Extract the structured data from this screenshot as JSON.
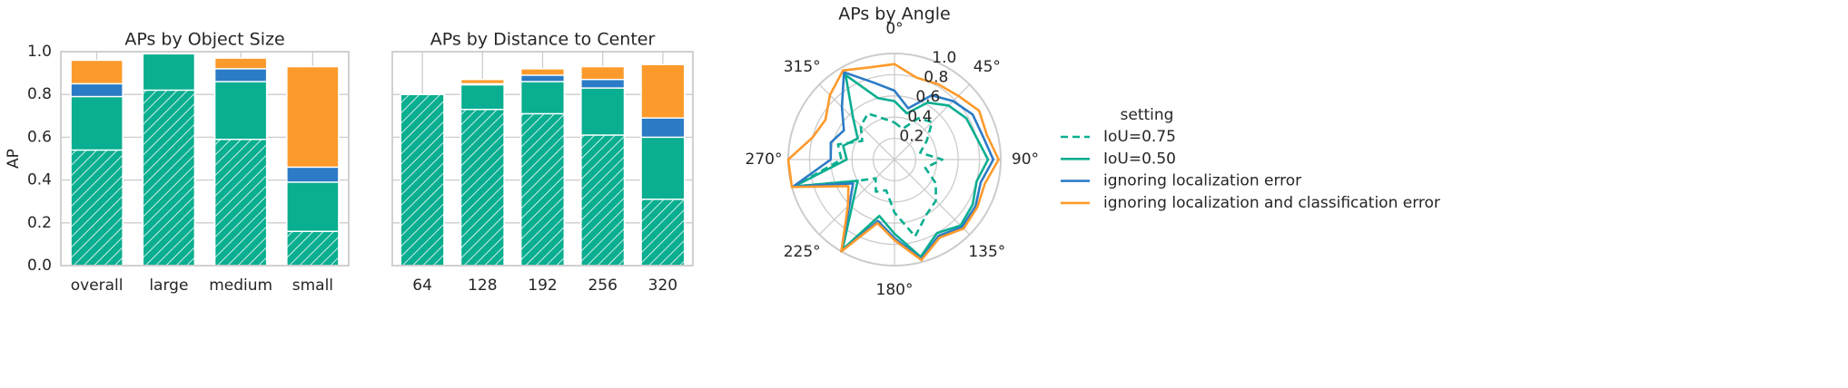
{
  "chart_data": [
    {
      "type": "bar",
      "title": "APs by Object Size",
      "ylabel": "AP",
      "categories": [
        "overall",
        "large",
        "medium",
        "small"
      ],
      "series": [
        {
          "color": "#0aae90",
          "hatch": true,
          "values": [
            0.54,
            0.82,
            0.59,
            0.16
          ]
        },
        {
          "color": "#0aae90",
          "values": [
            0.79,
            0.99,
            0.86,
            0.39
          ]
        },
        {
          "color": "#2b7bc6",
          "values": [
            0.85,
            0.99,
            0.92,
            0.46
          ]
        },
        {
          "color": "#fd9a2c",
          "values": [
            0.96,
            0.99,
            0.97,
            0.93
          ]
        }
      ],
      "ylim": [
        0,
        1
      ],
      "show_ytick_labels": true,
      "yticks": [
        {
          "value": 0,
          "label": "0.0"
        },
        0.2,
        0.4,
        0.6,
        0.8,
        {
          "value": 1,
          "label": "1.0"
        }
      ],
      "grid": true
    },
    {
      "type": "bar",
      "title": "APs by Distance to Center",
      "categories": [
        "64",
        "128",
        "192",
        "256",
        "320"
      ],
      "series": [
        {
          "color": "#0aae90",
          "hatch": true,
          "values": [
            0.8,
            0.73,
            0.71,
            0.61,
            0.31
          ]
        },
        {
          "color": "#0aae90",
          "values": [
            0.8,
            0.845,
            0.86,
            0.83,
            0.6
          ]
        },
        {
          "color": "#2b7bc6",
          "values": [
            0.8,
            0.85,
            0.89,
            0.87,
            0.69
          ]
        },
        {
          "color": "#fd9a2c",
          "values": [
            0.8,
            0.87,
            0.92,
            0.93,
            0.94
          ]
        }
      ],
      "ylim": [
        0,
        1
      ],
      "show_ytick_labels": false,
      "yticks": [
        0,
        0.2,
        0.4,
        0.6,
        0.8,
        1
      ],
      "grid": true
    },
    {
      "type": "polar",
      "title": "APs by Angle",
      "legend_title": "setting",
      "theta": [
        0,
        15,
        30,
        45,
        60,
        75,
        90,
        105,
        120,
        135,
        150,
        165,
        180,
        195,
        210,
        225,
        240,
        255,
        270,
        285,
        300,
        315,
        330,
        345
      ],
      "series": [
        {
          "name": "IoU=0.75",
          "color": "#0aae90",
          "linestyle": "dashed",
          "values": [
            0.35,
            0.3,
            0.45,
            0.5,
            0.35,
            0.25,
            0.45,
            0.3,
            0.45,
            0.55,
            0.6,
            0.75,
            0.5,
            0.3,
            0.35,
            0.25,
            0.4,
            0.98,
            0.5,
            0.55,
            0.35,
            0.45,
            0.5,
            0.4
          ]
        },
        {
          "name": "IoU=0.50",
          "color": "#0aae90",
          "linestyle": "solid",
          "values": [
            0.55,
            0.45,
            0.62,
            0.72,
            0.78,
            0.8,
            0.88,
            0.8,
            0.85,
            0.88,
            0.8,
            0.95,
            0.7,
            0.55,
            0.98,
            0.55,
            0.4,
            0.98,
            0.45,
            0.5,
            0.4,
            0.55,
            0.92,
            0.6
          ]
        },
        {
          "name": "ignoring localization error",
          "color": "#2b7bc6",
          "linestyle": "solid",
          "values": [
            0.65,
            0.5,
            0.7,
            0.78,
            0.85,
            0.86,
            0.93,
            0.84,
            0.88,
            0.9,
            0.83,
            0.97,
            0.74,
            0.6,
            1.0,
            0.6,
            0.45,
            0.99,
            0.6,
            0.62,
            0.55,
            0.7,
            0.95,
            0.75
          ]
        },
        {
          "name": "ignoring localization and classification error",
          "color": "#fd9a2c",
          "linestyle": "solid",
          "values": [
            0.9,
            0.8,
            0.82,
            0.85,
            0.92,
            0.9,
            0.98,
            0.88,
            0.9,
            0.92,
            0.85,
            0.98,
            0.76,
            0.62,
            1.0,
            0.62,
            0.5,
            1.0,
            1.0,
            0.8,
            0.75,
            0.86,
            0.97,
            0.9
          ]
        }
      ],
      "rlim": [
        0,
        1
      ],
      "rticks": [
        0.2,
        0.4,
        0.6,
        0.8,
        {
          "value": 1,
          "label": "1.0"
        }
      ],
      "thetaticks": [
        {
          "value": 0,
          "label": "0°"
        },
        {
          "value": 45,
          "label": "45°"
        },
        {
          "value": 90,
          "label": "90°"
        },
        {
          "value": 135,
          "label": "135°"
        },
        {
          "value": 180,
          "label": "180°"
        },
        {
          "value": 225,
          "label": "225°"
        },
        {
          "value": 270,
          "label": "270°"
        },
        {
          "value": 315,
          "label": "315°"
        }
      ],
      "grid": true
    }
  ]
}
